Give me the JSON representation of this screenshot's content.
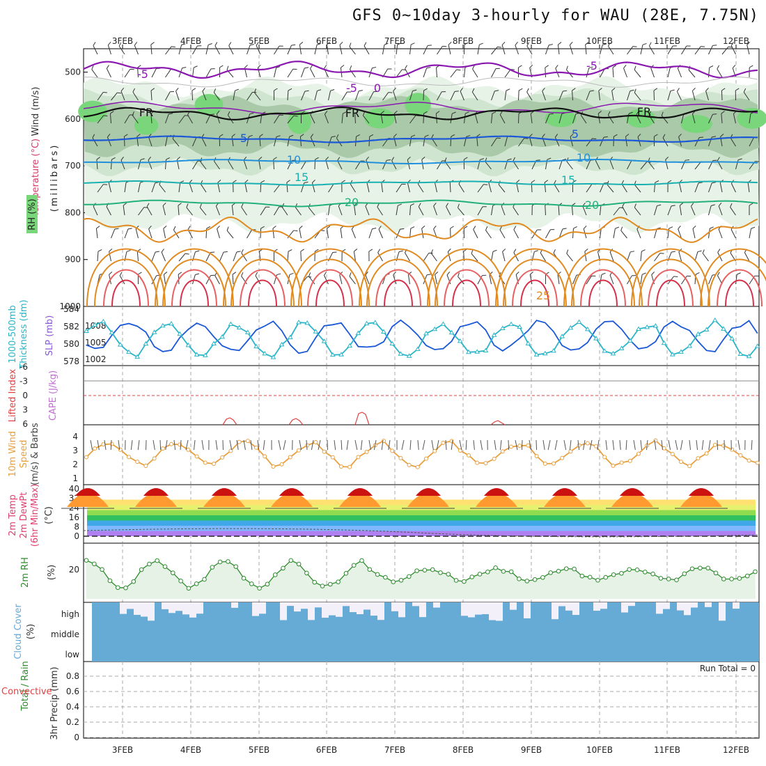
{
  "header": {
    "title": "GFS 0~10day 3-hourly for WAU (28E, 7.75N)"
  },
  "colors": {
    "grid": "#aaaaaa",
    "purple": "#8a18b0",
    "blue": "#1b58d8",
    "skyblue": "#2090dd",
    "teal": "#18b0b0",
    "green": "#22b07a",
    "orange": "#e08a20",
    "red": "#d8304a",
    "rh_green": "#7ad67a",
    "cloud": "#66aad6",
    "rh2m": "#2e8b2e",
    "temp_warm": "#cc1111"
  },
  "chart_data": [
    {
      "type": "contour",
      "name": "upper-air",
      "xlabel_dates": [
        "3FEB",
        "4FEB",
        "5FEB",
        "6FEB",
        "7FEB",
        "8FEB",
        "9FEB",
        "10FEB",
        "11FEB",
        "12FEB"
      ],
      "y_ticks": [
        "500",
        "600",
        "700",
        "800",
        "900",
        "1000"
      ],
      "ylabel": [
        "Wind (m/s)",
        "Temperature (°C)",
        "RH (%)",
        "(millibars)"
      ],
      "contour_labels": [
        {
          "text": "-5",
          "color": "purple"
        },
        {
          "text": "-5",
          "color": "purple"
        },
        {
          "text": "0",
          "color": "purple"
        },
        {
          "text": "-5",
          "color": "purple"
        },
        {
          "text": "FR",
          "color": "black"
        },
        {
          "text": "FR",
          "color": "black"
        },
        {
          "text": "FR",
          "color": "black"
        },
        {
          "text": "5",
          "color": "blue"
        },
        {
          "text": "5",
          "color": "blue"
        },
        {
          "text": "10",
          "color": "skyblue"
        },
        {
          "text": "10",
          "color": "skyblue"
        },
        {
          "text": "15",
          "color": "teal"
        },
        {
          "text": "15",
          "color": "teal"
        },
        {
          "text": "20",
          "color": "green"
        },
        {
          "text": "20",
          "color": "green"
        },
        {
          "text": "25",
          "color": "orange"
        }
      ]
    },
    {
      "type": "line",
      "name": "thickness-slp",
      "ylabel": [
        "1000-500mb",
        "Thickness (dm)",
        "SLP (mb)"
      ],
      "left_ticks": [
        "584",
        "582",
        "580",
        "578"
      ],
      "right_ticks": [
        "1008",
        "1005",
        "1002"
      ]
    },
    {
      "type": "line",
      "name": "lifted-index-cape",
      "ylabel": [
        "Lifted Index",
        "CAPE (J/kg)"
      ],
      "y_ticks": [
        "-6",
        "-3",
        "0",
        "3",
        "6"
      ]
    },
    {
      "type": "line",
      "name": "10m-wind",
      "ylabel": [
        "10m Wind",
        "Speed",
        "(m/s) & Barbs"
      ],
      "y_ticks": [
        "4",
        "3",
        "2",
        "1"
      ]
    },
    {
      "type": "area",
      "name": "2m-temp",
      "ylabel": [
        "2m Temp",
        "2m DewPt",
        "(6hr Min/Max)",
        "(°C)"
      ],
      "y_ticks": [
        "40",
        "32",
        "24",
        "16",
        "8",
        "0"
      ]
    },
    {
      "type": "line",
      "name": "2m-rh",
      "ylabel": [
        "2m RH",
        "(%)"
      ],
      "y_ticks": [
        "20"
      ]
    },
    {
      "type": "bar",
      "name": "cloud-cover",
      "ylabel": [
        "Cloud Cover",
        "(%)"
      ],
      "levels": [
        "high",
        "middle",
        "low"
      ]
    },
    {
      "type": "bar",
      "name": "precip",
      "ylabel": [
        "Total / Rain",
        "Convective",
        "3hr Precip (mm)"
      ],
      "y_ticks": [
        "0.8",
        "0.6",
        "0.4",
        "0.2",
        "0"
      ],
      "run_total": "Run Total = 0"
    }
  ]
}
